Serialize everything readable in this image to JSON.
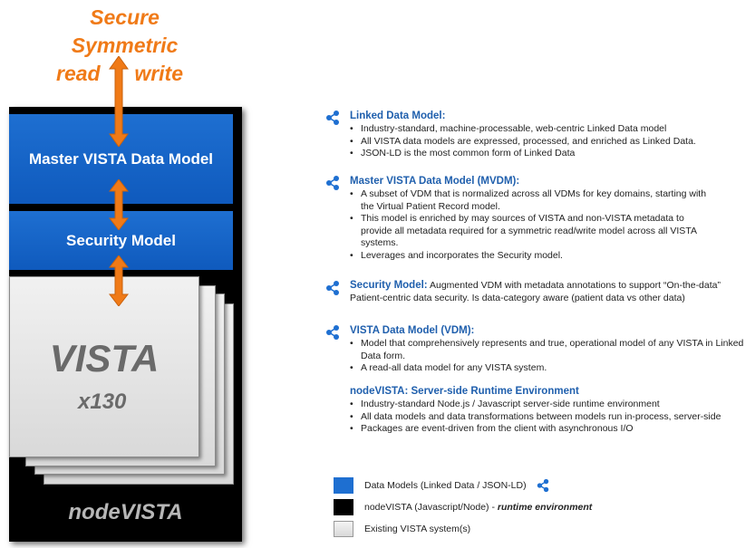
{
  "colors": {
    "accent_orange": "#f07a17",
    "model_blue": "#1e6fd1",
    "heading_blue": "#1f5fad",
    "runtime_black": "#000000",
    "vista_gray": "#e6e6e6"
  },
  "diagram": {
    "top_label": {
      "line1": "Secure",
      "line2": "Symmetric",
      "read": "read",
      "write": "write"
    },
    "master_model": "Master VISTA Data Model",
    "security_model": "Security Model",
    "vista": {
      "title": "VISTA",
      "count": "x130"
    },
    "runtime": "nodeVISTA"
  },
  "sections": {
    "linked": {
      "icon": "share-nodes-icon",
      "heading": "Linked Data Model:",
      "bullets": [
        "Industry-standard, machine-processable, web-centric Linked Data model",
        "All VISTA data models are expressed, processed, and enriched as Linked Data.",
        "JSON-LD is the most common form of Linked Data"
      ]
    },
    "mvdm": {
      "icon": "share-nodes-icon",
      "heading": "Master VISTA Data Model (MVDM):",
      "bullets": [
        "A subset of VDM that  is normalized across all VDMs for key domains, starting with the Virtual Patient Record model.",
        "This model is enriched by may sources of VISTA and non-VISTA metadata to provide all metadata required  for a  symmetric read/write model  across all VISTA systems.",
        "Leverages and incorporates the Security model."
      ]
    },
    "security": {
      "icon": "share-nodes-icon",
      "heading": "Security Model:",
      "description": "Augmented VDM with metadata annotations to support “On-the-data”  Patient-centric data security.  Is data-category aware (patient data vs other data)"
    },
    "vdm": {
      "icon": "share-nodes-icon",
      "heading": "VISTA Data Model (VDM):",
      "bullets": [
        "Model that comprehensively represents and true, operational model of any VISTA  in Linked Data form.",
        "A read-all data model for any VISTA system."
      ]
    },
    "runtime": {
      "heading": "nodeVISTA:  Server-side Runtime Environment",
      "bullets": [
        "Industry-standard  Node.js / Javascript server-side runtime environment",
        "All data models and data transformations between models run in-process, server-side",
        "Packages are event-driven from the client with asynchronous I/O"
      ]
    }
  },
  "legend": [
    {
      "label": "Data Models  (Linked Data /  JSON-LD)",
      "color": "#1e6fd1",
      "icon": "share-nodes-icon"
    },
    {
      "label": "nodeVISTA  (Javascript/Node) - ",
      "emphasis": "runtime environment",
      "color": "#000000"
    },
    {
      "label": "Existing VISTA system(s)",
      "color": "#e6e6e6"
    }
  ]
}
